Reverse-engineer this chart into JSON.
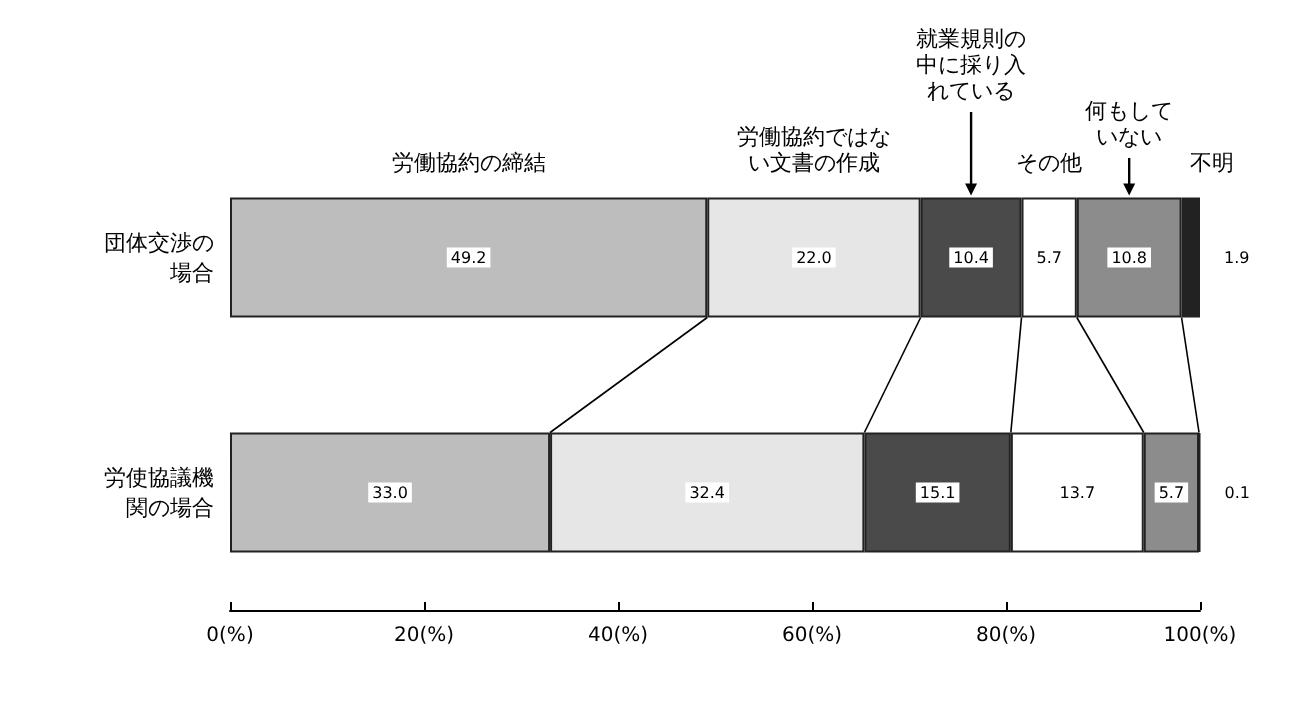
{
  "chart_data": {
    "type": "bar",
    "orientation": "horizontal",
    "stacked": true,
    "categories": [
      "団体交渉の場合",
      "労使協議機関の場合"
    ],
    "series": [
      {
        "name": "労働協約の締結",
        "color": "#bdbdbd",
        "values": [
          49.2,
          33.0
        ],
        "value_labels": [
          "49.2",
          "33.0"
        ]
      },
      {
        "name": "労働協約ではない文書の作成",
        "color": "#e6e6e6",
        "values": [
          22.0,
          32.4
        ],
        "value_labels": [
          "22.0",
          "32.4"
        ]
      },
      {
        "name": "就業規則の中に採り入れている",
        "color": "#4a4a4a",
        "values": [
          10.4,
          15.1
        ],
        "value_labels": [
          "10.4",
          "15.1"
        ]
      },
      {
        "name": "その他",
        "color": "#ffffff",
        "values": [
          5.7,
          13.7
        ],
        "value_labels": [
          "5.7",
          "13.7"
        ]
      },
      {
        "name": "何もしていない",
        "color": "#8c8c8c",
        "values": [
          10.8,
          5.7
        ],
        "value_labels": [
          "10.8",
          "5.7"
        ]
      },
      {
        "name": "不明",
        "color": "#222222",
        "values": [
          1.9,
          0.1
        ],
        "value_labels": [
          "1.9",
          "0.1"
        ]
      }
    ],
    "xlim": [
      0,
      100
    ],
    "xticks": [
      {
        "value": 0,
        "label": "0(%)"
      },
      {
        "value": 20,
        "label": "20(%)"
      },
      {
        "value": 40,
        "label": "40(%)"
      },
      {
        "value": 60,
        "label": "60(%)"
      },
      {
        "value": 80,
        "label": "80(%)"
      },
      {
        "value": 100,
        "label": "100(%)"
      }
    ]
  }
}
